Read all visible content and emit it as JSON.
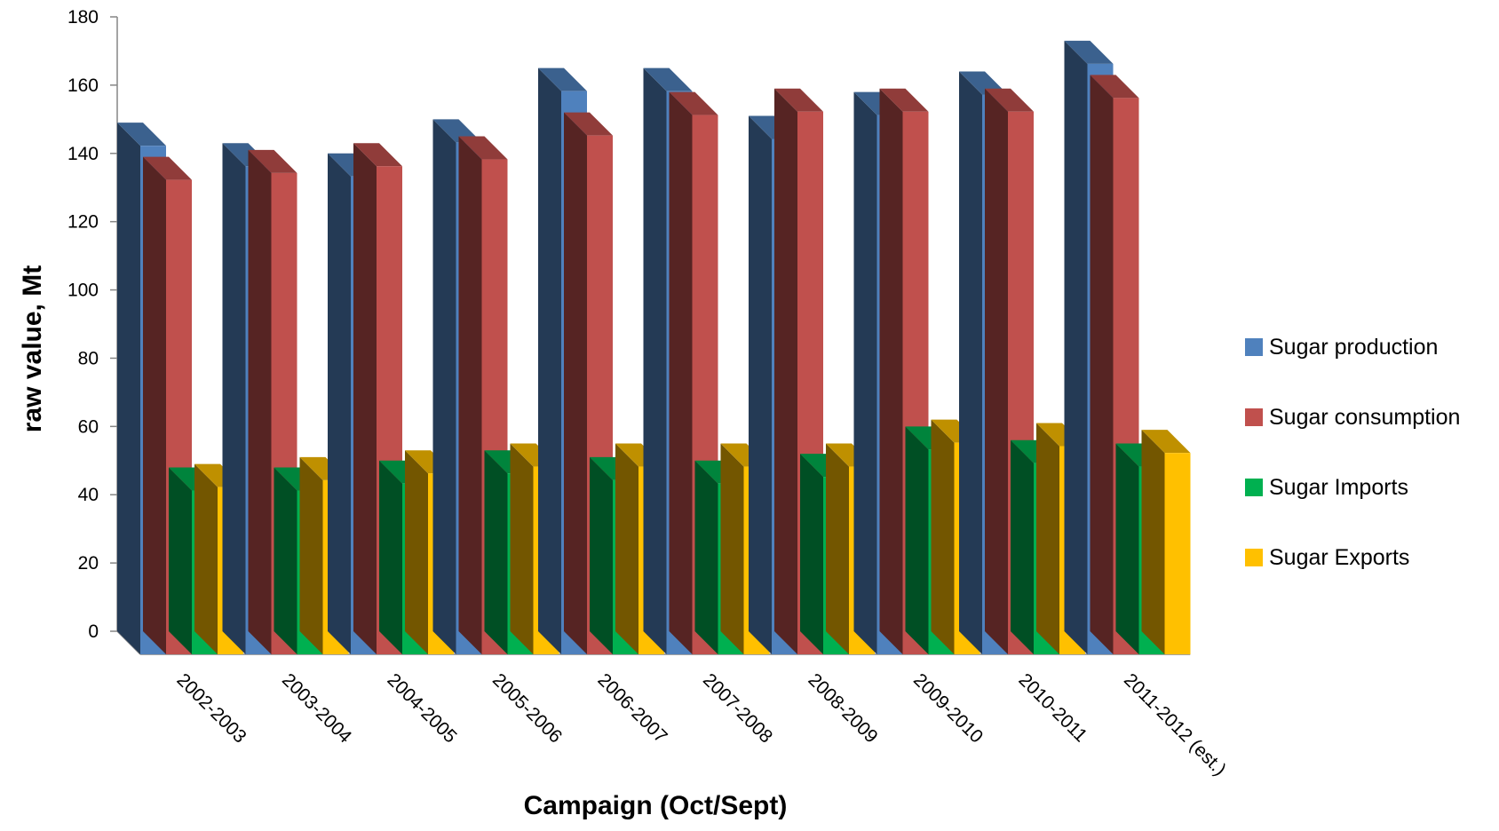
{
  "chart_data": {
    "type": "bar",
    "style": "3d-clustered-column",
    "xlabel": "Campaign (Oct/Sept)",
    "ylabel": "raw value, Mt",
    "ylim": [
      0,
      180
    ],
    "yticks": [
      0,
      20,
      40,
      60,
      80,
      100,
      120,
      140,
      160,
      180
    ],
    "grid": false,
    "legend_position": "right",
    "categories": [
      "2002-2003",
      "2003-2004",
      "2004-2005",
      "2005-2006",
      "2006-2007",
      "2007-2008",
      "2008-2009",
      "2009-2010",
      "2010-2011",
      "2011-2012 (est.)"
    ],
    "series": [
      {
        "name": "Sugar production",
        "color": "#4F81BD",
        "values": [
          149,
          143,
          140,
          150,
          165,
          165,
          151,
          158,
          164,
          173
        ]
      },
      {
        "name": "Sugar consumption",
        "color": "#C0504D",
        "values": [
          139,
          141,
          143,
          145,
          152,
          158,
          159,
          159,
          159,
          163
        ]
      },
      {
        "name": "Sugar Imports",
        "color": "#00B050",
        "values": [
          48,
          48,
          50,
          53,
          51,
          50,
          52,
          60,
          56,
          55
        ]
      },
      {
        "name": "Sugar Exports",
        "color": "#FFC000",
        "values": [
          49,
          51,
          53,
          55,
          55,
          55,
          55,
          62,
          61,
          59
        ]
      }
    ]
  }
}
